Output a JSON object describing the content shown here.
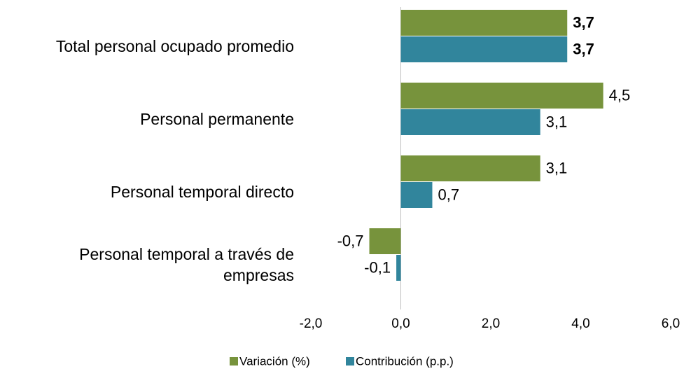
{
  "chart_data": {
    "type": "bar",
    "orientation": "horizontal",
    "categories": [
      "Total personal ocupado promedio",
      "Personal permanente",
      "Personal temporal directo",
      "Personal temporal a través de empresas"
    ],
    "series": [
      {
        "name": "Variación (%)",
        "color": "#77933c",
        "values": [
          3.7,
          4.5,
          3.1,
          -0.7
        ],
        "value_labels": [
          "3,7",
          "4,5",
          "3,1",
          "-0,7"
        ]
      },
      {
        "name": "Contribución (p.p.)",
        "color": "#31859c",
        "values": [
          3.7,
          3.1,
          0.7,
          -0.1
        ],
        "value_labels": [
          "3,7",
          "3,1",
          "0,7",
          "-0,1"
        ]
      }
    ],
    "xlim": [
      -2,
      6
    ],
    "xticks": [
      {
        "value": -2,
        "label": "-2,0"
      },
      {
        "value": 0,
        "label": "0,0"
      },
      {
        "value": 2,
        "label": "2,0"
      },
      {
        "value": 4,
        "label": "4,0"
      },
      {
        "value": 6,
        "label": "6,0"
      }
    ],
    "grid": false,
    "legend": "bottom"
  }
}
